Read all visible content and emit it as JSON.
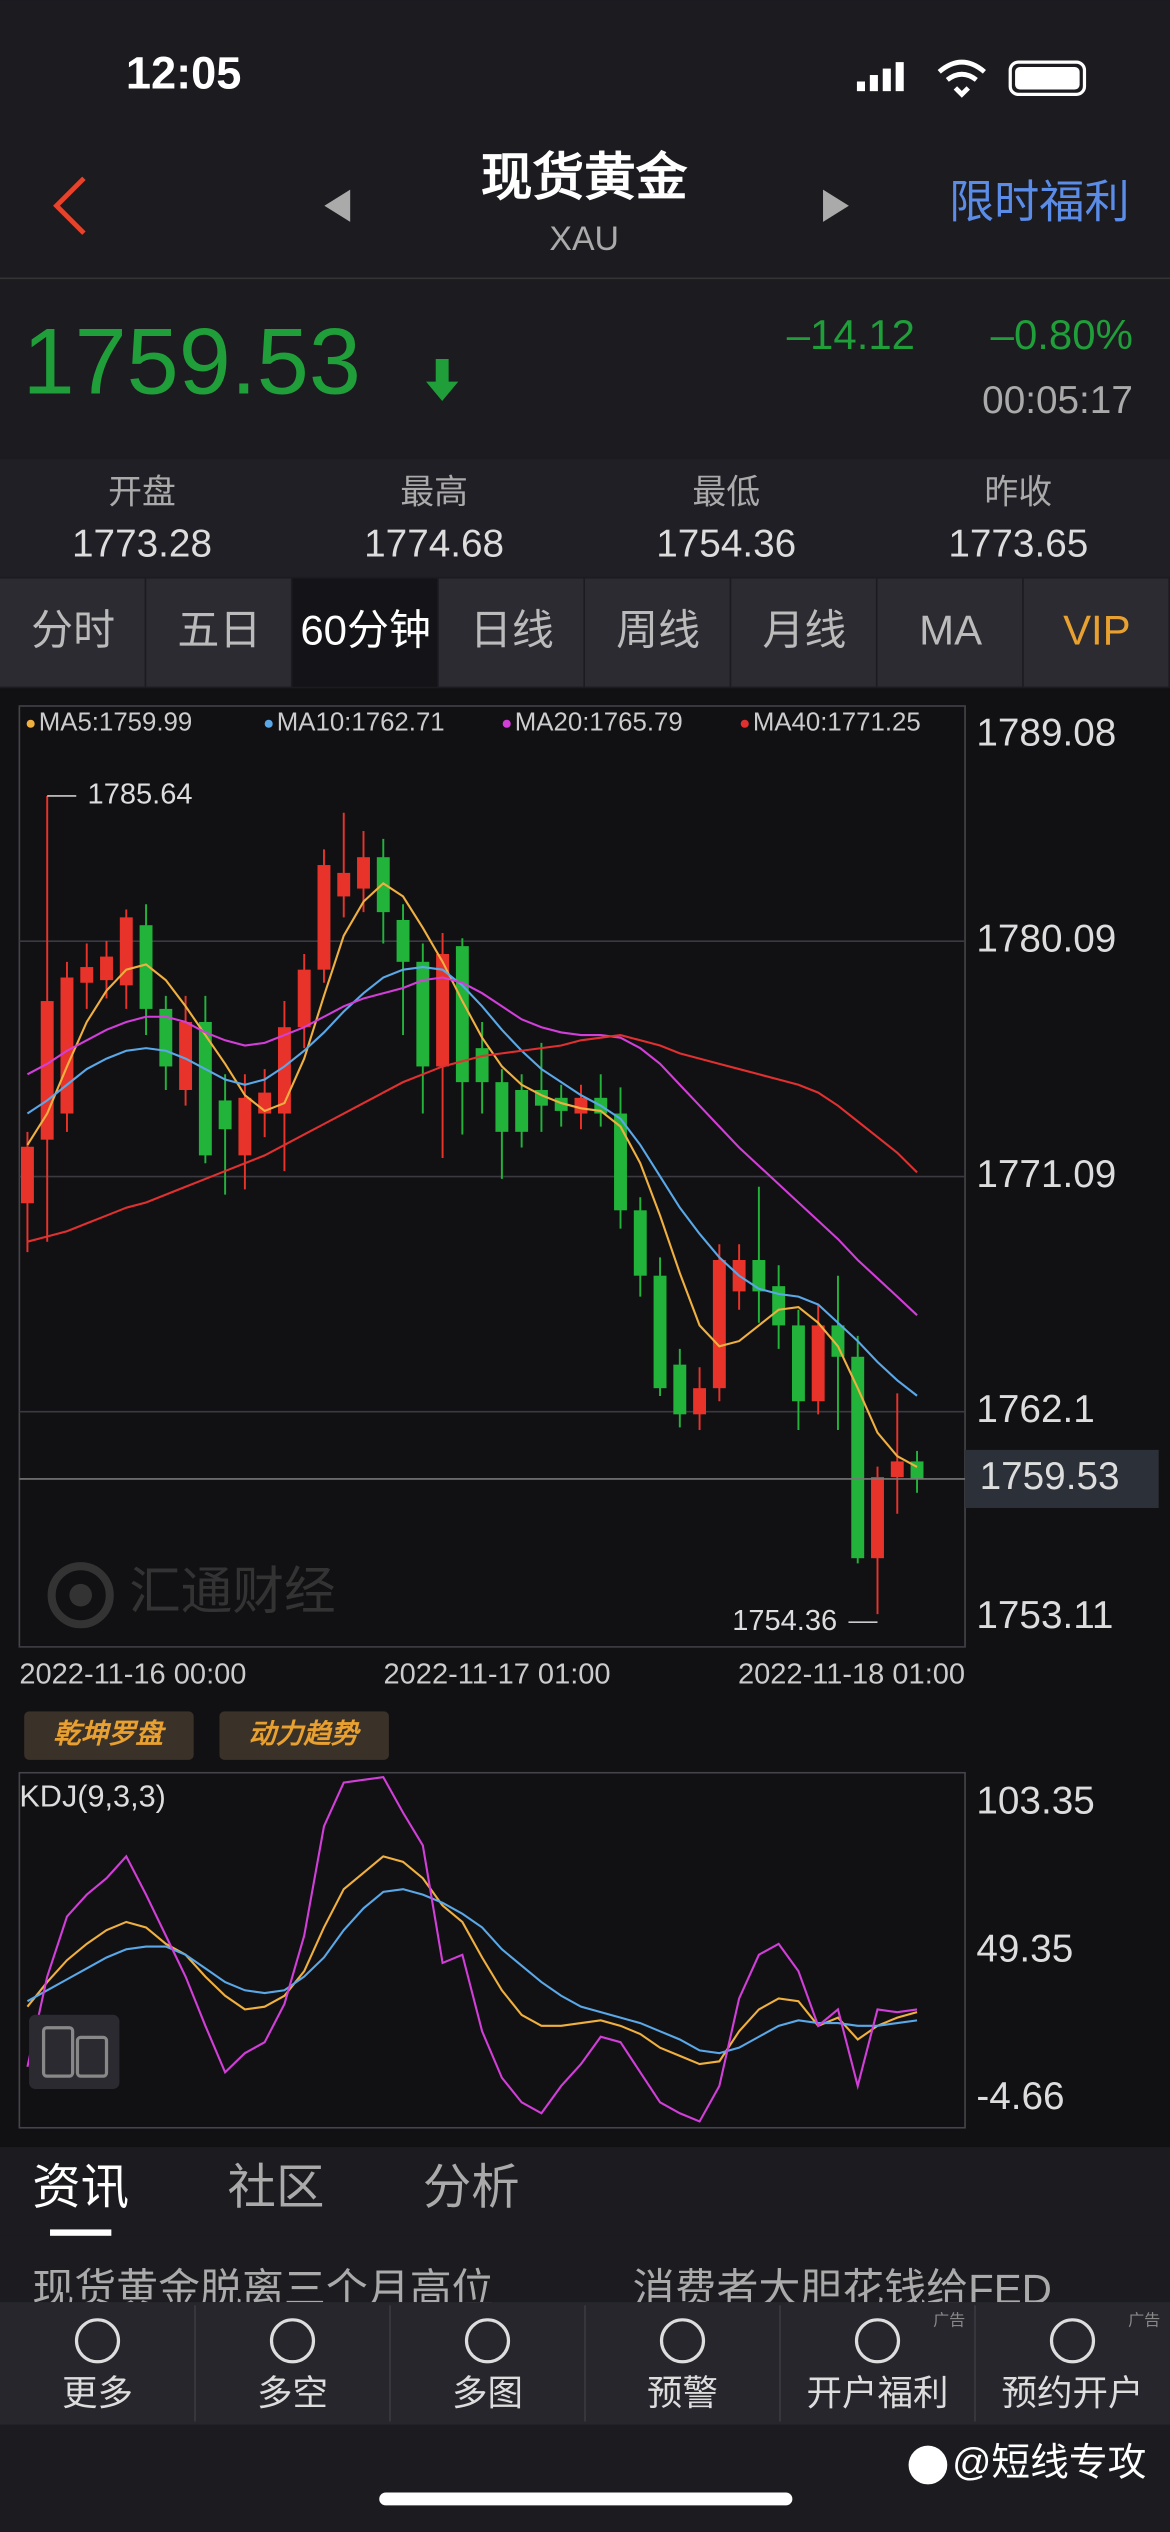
{
  "status_bar": {
    "time": "12:05"
  },
  "header": {
    "title": "现货黄金",
    "code": "XAU",
    "promo": "限时福利"
  },
  "quote": {
    "price": 1759.53,
    "change": "–14.12",
    "change_pct": "–0.80%",
    "time": "00:05:17"
  },
  "stats": [
    {
      "label": "开盘",
      "value": 1773.28
    },
    {
      "label": "最高",
      "value": 1774.68
    },
    {
      "label": "最低",
      "value": 1754.36
    },
    {
      "label": "昨收",
      "value": 1773.65
    }
  ],
  "tabs": {
    "items": [
      "分时",
      "五日",
      "60分钟",
      "日线",
      "周线",
      "月线",
      "MA",
      "VIP"
    ],
    "active": 2
  },
  "chart_data": [
    {
      "type": "candlestick",
      "up_color": "#e8332a",
      "down_color": "#22b33a",
      "grid": true,
      "ylim": [
        1753.11,
        1789.08
      ],
      "yticks": [
        {
          "value": 1753.11,
          "label": "1753.11"
        },
        1762.1,
        {
          "value": 1771.09,
          "label": "1771.09"
        },
        {
          "value": 1780.09,
          "label": "1780.09"
        },
        {
          "value": 1789.08,
          "label": "1789.08"
        }
      ],
      "x_labels": [
        "2022-11-16 00:00",
        "2022-11-17 01:00",
        "2022-11-18 01:00"
      ],
      "open": [
        1770.07,
        1772.5,
        1773.5,
        1778.5,
        1778.6,
        1778.4,
        1780.7,
        1777.5,
        1774.4,
        1777.0,
        1774.0,
        1771.9,
        1773.5,
        1773.5,
        1776.8,
        1779.0,
        1781.8,
        1782.1,
        1783.3,
        1780.9,
        1779.3,
        1775.3,
        1779.9,
        1776.0,
        1774.7,
        1774.4,
        1774.4,
        1774.1,
        1773.5,
        1774.1,
        1773.5,
        1769.8,
        1767.3,
        1763.9,
        1762.0,
        1763.0,
        1766.7,
        1767.9,
        1766.9,
        1765.4,
        1762.5,
        1765.4,
        1764.2,
        1756.5,
        1759.6,
        1760.2
      ],
      "high": [
        1772.8,
        1785.64,
        1779.3,
        1780.0,
        1780.1,
        1781.3,
        1781.5,
        1778.0,
        1778.0,
        1778.0,
        1775.0,
        1775.0,
        1775.2,
        1777.8,
        1779.6,
        1783.6,
        1785.0,
        1784.3,
        1784.0,
        1781.5,
        1780.0,
        1780.4,
        1780.2,
        1777.0,
        1775.2,
        1775.0,
        1776.2,
        1774.6,
        1774.6,
        1775.0,
        1774.5,
        1770.3,
        1768.0,
        1764.5,
        1763.8,
        1768.5,
        1768.5,
        1770.7,
        1767.7,
        1766.0,
        1766.2,
        1767.3,
        1765.0,
        1760.0,
        1762.8,
        1760.6
      ],
      "low": [
        1768.2,
        1768.6,
        1772.8,
        1777.5,
        1777.9,
        1777.5,
        1776.5,
        1774.4,
        1773.8,
        1771.6,
        1770.4,
        1770.6,
        1772.6,
        1771.3,
        1776.0,
        1778.5,
        1781.0,
        1781.2,
        1780.0,
        1776.5,
        1773.5,
        1771.8,
        1772.7,
        1773.5,
        1771.0,
        1772.2,
        1772.8,
        1773.0,
        1772.9,
        1773.0,
        1769.1,
        1766.5,
        1762.7,
        1761.5,
        1761.4,
        1762.5,
        1766.0,
        1765.5,
        1764.5,
        1761.4,
        1762.0,
        1761.4,
        1756.3,
        1754.36,
        1758.2,
        1759.0
      ],
      "close": [
        1772.23,
        1777.8,
        1778.7,
        1779.1,
        1779.5,
        1781.0,
        1777.5,
        1775.3,
        1777.0,
        1771.9,
        1772.9,
        1774.1,
        1774.3,
        1776.8,
        1779.0,
        1783.0,
        1782.7,
        1783.3,
        1781.2,
        1779.3,
        1775.3,
        1779.6,
        1774.7,
        1774.7,
        1772.8,
        1772.8,
        1773.8,
        1773.6,
        1774.1,
        1773.5,
        1769.8,
        1767.3,
        1763.0,
        1762.0,
        1763.0,
        1767.9,
        1767.9,
        1766.7,
        1765.4,
        1762.5,
        1765.4,
        1764.2,
        1756.5,
        1759.6,
        1760.2,
        1759.53
      ],
      "series": [
        {
          "name": "MA5:1759.99",
          "color": "#f0b040",
          "values": [
            1772.3,
            1773.5,
            1775.3,
            1777.0,
            1778.2,
            1779.0,
            1779.2,
            1778.6,
            1777.6,
            1776.5,
            1775.4,
            1774.2,
            1773.6,
            1773.9,
            1775.6,
            1778.0,
            1780.3,
            1781.6,
            1782.3,
            1781.8,
            1780.6,
            1779.3,
            1777.8,
            1776.4,
            1775.3,
            1774.6,
            1774.2,
            1773.9,
            1773.7,
            1773.6,
            1773.0,
            1771.6,
            1769.6,
            1767.4,
            1765.4,
            1764.6,
            1764.8,
            1765.4,
            1766.0,
            1766.1,
            1765.5,
            1764.6,
            1763.0,
            1761.3,
            1760.4,
            1759.99
          ]
        },
        {
          "name": "MA10:1762.71",
          "color": "#5aa8e8",
          "values": [
            1773.5,
            1774.0,
            1774.6,
            1775.2,
            1775.6,
            1775.9,
            1776.0,
            1775.9,
            1775.6,
            1775.2,
            1774.8,
            1774.6,
            1774.8,
            1775.3,
            1775.9,
            1776.6,
            1777.4,
            1778.1,
            1778.7,
            1779.0,
            1779.1,
            1779.0,
            1778.4,
            1777.6,
            1776.7,
            1775.9,
            1775.2,
            1774.7,
            1774.2,
            1773.8,
            1773.3,
            1772.3,
            1771.1,
            1769.9,
            1768.9,
            1768.0,
            1767.3,
            1766.8,
            1766.6,
            1766.5,
            1766.2,
            1765.5,
            1764.8,
            1764.0,
            1763.3,
            1762.71
          ]
        },
        {
          "name": "MA20:1765.79",
          "color": "#d23ed8",
          "values": [
            1775.0,
            1775.4,
            1775.9,
            1776.3,
            1776.7,
            1777.0,
            1777.2,
            1777.2,
            1777.0,
            1776.6,
            1776.3,
            1776.1,
            1776.2,
            1776.5,
            1776.8,
            1777.2,
            1777.6,
            1777.9,
            1778.1,
            1778.3,
            1778.6,
            1778.7,
            1778.5,
            1778.1,
            1777.6,
            1777.1,
            1776.8,
            1776.6,
            1776.5,
            1776.5,
            1776.4,
            1776.0,
            1775.4,
            1774.6,
            1773.8,
            1773.0,
            1772.2,
            1771.5,
            1770.8,
            1770.1,
            1769.4,
            1768.7,
            1767.9,
            1767.2,
            1766.5,
            1765.79
          ]
        },
        {
          "name": "MA40:1771.25",
          "color": "#e03030",
          "values": [
            1768.6,
            1768.8,
            1769.0,
            1769.3,
            1769.6,
            1769.9,
            1770.1,
            1770.4,
            1770.7,
            1771.0,
            1771.3,
            1771.6,
            1771.9,
            1772.3,
            1772.7,
            1773.1,
            1773.5,
            1773.9,
            1774.3,
            1774.7,
            1775.0,
            1775.3,
            1775.5,
            1775.7,
            1775.8,
            1775.9,
            1776.0,
            1776.1,
            1776.3,
            1776.4,
            1776.5,
            1776.3,
            1776.1,
            1775.8,
            1775.6,
            1775.4,
            1775.2,
            1775.0,
            1774.8,
            1774.6,
            1774.3,
            1773.8,
            1773.2,
            1772.6,
            1772.0,
            1771.25
          ]
        }
      ]
    },
    {
      "type": "line",
      "title": "KDJ(9,3,3)",
      "grid": false,
      "ylim": [
        -15.3,
        114.6
      ],
      "yticks": [
        -4.66,
        49.35,
        103.35
      ],
      "series": [
        {
          "color": "#f0b040",
          "values": [
            29,
            38,
            46,
            52,
            57,
            60,
            58,
            52,
            48,
            40,
            33,
            28,
            29,
            33,
            42,
            58,
            72,
            78,
            84,
            82,
            76,
            66,
            60,
            47,
            35,
            26,
            22,
            22,
            23,
            24,
            22,
            19,
            14,
            11,
            8,
            9,
            20,
            28,
            32,
            31,
            22,
            25,
            17,
            22,
            25,
            27
          ]
        },
        {
          "color": "#5aa8e8",
          "values": [
            31,
            35,
            39,
            43,
            47,
            50,
            51,
            51,
            48,
            43,
            38,
            35,
            34,
            35,
            40,
            47,
            57,
            65,
            71,
            72,
            70,
            67,
            63,
            58,
            50,
            44,
            38,
            33,
            29,
            27,
            25,
            23,
            20,
            17,
            13,
            12,
            14,
            18,
            22,
            24,
            23,
            23,
            22,
            22,
            23,
            24
          ]
        },
        {
          "color": "#d23ed8",
          "values": [
            7,
            40,
            62,
            70,
            76,
            84,
            70,
            55,
            40,
            22,
            5,
            12,
            16,
            30,
            55,
            95,
            111,
            112,
            113,
            100,
            88,
            45,
            48,
            20,
            3,
            -6,
            -10,
            0,
            8,
            18,
            16,
            5,
            -6,
            -10,
            -13,
            0,
            32,
            48,
            52,
            42,
            22,
            28,
            0,
            28,
            27,
            28
          ]
        }
      ]
    }
  ],
  "indicators": [
    "乾坤罗盘",
    "动力趋势"
  ],
  "watermark": "汇通财经",
  "news_tabs": {
    "items": [
      "资讯",
      "社区",
      "分析"
    ],
    "active": 0
  },
  "news": [
    "现货黄金脱离三个月高位",
    "消费者大胆花钱给FED"
  ],
  "nav": [
    {
      "label": "更多"
    },
    {
      "label": "多空"
    },
    {
      "label": "多图"
    },
    {
      "label": "预警"
    },
    {
      "label": "开户福利",
      "badge": "广告"
    },
    {
      "label": "预约开户",
      "badge": "广告"
    }
  ],
  "credit": "@短线专攻"
}
